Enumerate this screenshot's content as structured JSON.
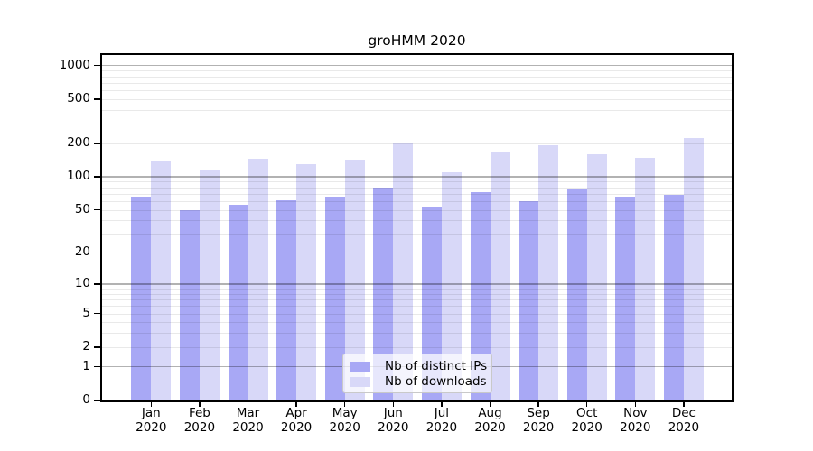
{
  "title": "groHMM 2020",
  "colors": {
    "ips_bar": "#a8a8f5",
    "downloads_bar": "#d8d8f8",
    "axis": "#000000",
    "grid_major": "rgba(0,0,0,0.30)",
    "grid_minor": "rgba(0,0,0,0.085)",
    "legend_border": "#c9c9c9"
  },
  "legend": {
    "items": [
      {
        "key": "ips",
        "label": "Nb of distinct IPs"
      },
      {
        "key": "downloads",
        "label": "Nb of downloads"
      }
    ]
  },
  "chart_data": {
    "type": "bar",
    "title": "groHMM 2020",
    "xlabel": "",
    "ylabel": "",
    "categories": [
      "Jan 2020",
      "Feb 2020",
      "Mar 2020",
      "Apr 2020",
      "May 2020",
      "Jun 2020",
      "Jul 2020",
      "Aug 2020",
      "Sep 2020",
      "Oct 2020",
      "Nov 2020",
      "Dec 2020"
    ],
    "series": [
      {
        "name": "Nb of distinct IPs",
        "values": [
          66,
          50,
          56,
          61,
          66,
          80,
          53,
          73,
          60,
          77,
          66,
          68
        ]
      },
      {
        "name": "Nb of downloads",
        "values": [
          137,
          113,
          146,
          129,
          142,
          200,
          110,
          167,
          192,
          160,
          148,
          225
        ]
      }
    ],
    "y_scale": "log1p",
    "y_ticks": [
      0,
      1,
      2,
      5,
      10,
      20,
      50,
      100,
      200,
      500,
      1000
    ],
    "ylim": [
      0,
      1000
    ],
    "grid": true,
    "grid_over_bars": true,
    "legend_position": "inside-bottom-center"
  }
}
